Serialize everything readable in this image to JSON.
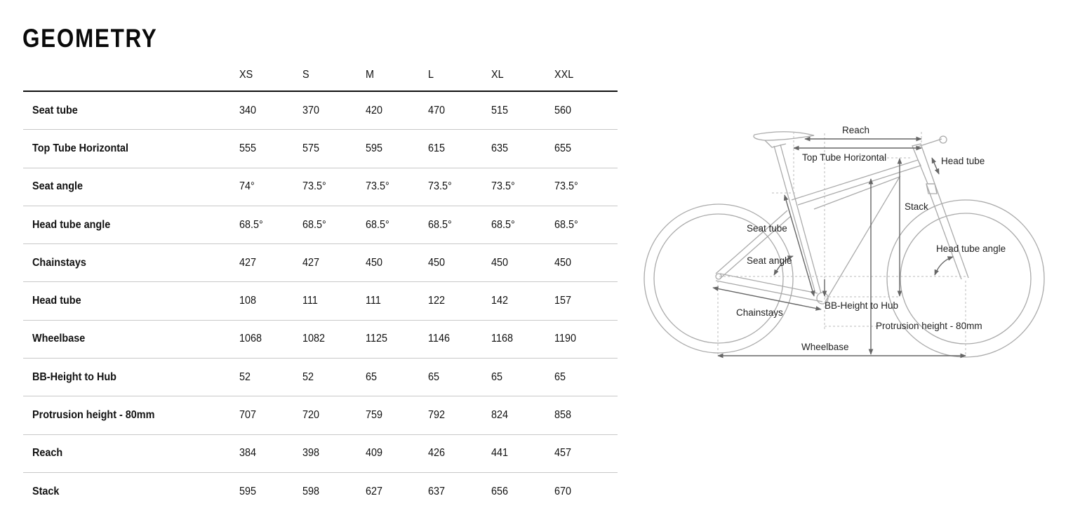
{
  "title": "GEOMETRY",
  "table": {
    "sizes": [
      "XS",
      "S",
      "M",
      "L",
      "XL",
      "XXL"
    ],
    "rows": [
      {
        "label": "Seat tube",
        "values": [
          "340",
          "370",
          "420",
          "470",
          "515",
          "560"
        ]
      },
      {
        "label": "Top Tube Horizontal",
        "values": [
          "555",
          "575",
          "595",
          "615",
          "635",
          "655"
        ]
      },
      {
        "label": "Seat angle",
        "values": [
          "74°",
          "73.5°",
          "73.5°",
          "73.5°",
          "73.5°",
          "73.5°"
        ]
      },
      {
        "label": "Head tube angle",
        "values": [
          "68.5°",
          "68.5°",
          "68.5°",
          "68.5°",
          "68.5°",
          "68.5°"
        ]
      },
      {
        "label": "Chainstays",
        "values": [
          "427",
          "427",
          "450",
          "450",
          "450",
          "450"
        ]
      },
      {
        "label": "Head tube",
        "values": [
          "108",
          "111",
          "111",
          "122",
          "142",
          "157"
        ]
      },
      {
        "label": "Wheelbase",
        "values": [
          "1068",
          "1082",
          "1125",
          "1146",
          "1168",
          "1190"
        ]
      },
      {
        "label": "BB-Height to Hub",
        "values": [
          "52",
          "52",
          "65",
          "65",
          "65",
          "65"
        ]
      },
      {
        "label": "Protrusion height - 80mm",
        "values": [
          "707",
          "720",
          "759",
          "792",
          "824",
          "858"
        ]
      },
      {
        "label": "Reach",
        "values": [
          "384",
          "398",
          "409",
          "426",
          "441",
          "457"
        ]
      },
      {
        "label": "Stack",
        "values": [
          "595",
          "598",
          "627",
          "637",
          "656",
          "670"
        ]
      }
    ]
  },
  "diagram": {
    "labels": {
      "reach": "Reach",
      "top_tube": "Top Tube Horizontal",
      "head_tube": "Head tube",
      "stack": "Stack",
      "seat_tube": "Seat tube",
      "seat_angle": "Seat angle",
      "head_tube_angle": "Head tube angle",
      "chainstays": "Chainstays",
      "bb_height": "BB-Height to Hub",
      "protrusion": "Protrusion height - 80mm",
      "wheelbase": "Wheelbase"
    }
  }
}
